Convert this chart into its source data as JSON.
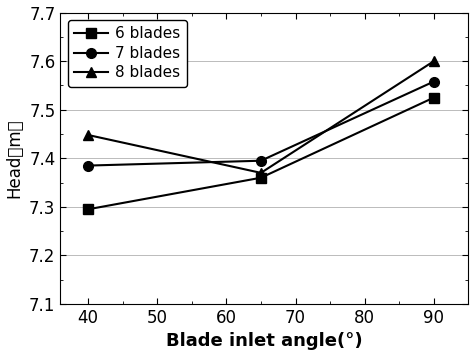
{
  "x": [
    40,
    65,
    90
  ],
  "series": [
    {
      "label": "6 blades",
      "y": [
        7.295,
        7.36,
        7.525
      ],
      "marker": "s",
      "color": "#000000",
      "linestyle": "-"
    },
    {
      "label": "7 blades",
      "y": [
        7.385,
        7.395,
        7.558
      ],
      "marker": "o",
      "color": "#000000",
      "linestyle": "-"
    },
    {
      "label": "8 blades",
      "y": [
        7.448,
        7.37,
        7.6
      ],
      "marker": "^",
      "color": "#000000",
      "linestyle": "-"
    }
  ],
  "xlabel": "Blade inlet angle(°)",
  "ylabel": "Head（m）",
  "xlim": [
    36,
    95
  ],
  "ylim": [
    7.1,
    7.7
  ],
  "xticks": [
    40,
    50,
    60,
    70,
    80,
    90
  ],
  "yticks": [
    7.1,
    7.2,
    7.3,
    7.4,
    7.5,
    7.6,
    7.7
  ],
  "grid": true,
  "legend_loc": "upper left",
  "background_color": "#ffffff",
  "fontsize": 12,
  "xlabel_fontsize": 13,
  "ylabel_fontsize": 12,
  "marker_size": 7,
  "linewidth": 1.5
}
